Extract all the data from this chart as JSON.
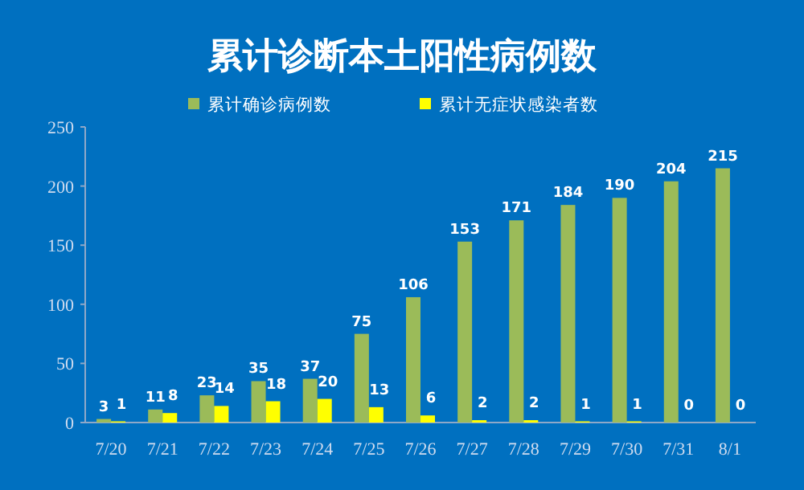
{
  "chart_data": {
    "type": "bar",
    "title": "累计诊断本土阳性病例数",
    "categories": [
      "7/20",
      "7/21",
      "7/22",
      "7/23",
      "7/24",
      "7/25",
      "7/26",
      "7/27",
      "7/28",
      "7/29",
      "7/30",
      "7/31",
      "8/1"
    ],
    "series": [
      {
        "name": "累计确诊病例数",
        "color": "#9bbb59",
        "values": [
          3,
          11,
          23,
          35,
          37,
          75,
          106,
          153,
          171,
          184,
          190,
          204,
          215
        ]
      },
      {
        "name": "累计无症状感染者数",
        "color": "#ffff00",
        "values": [
          1,
          8,
          14,
          18,
          20,
          13,
          6,
          2,
          2,
          1,
          1,
          0,
          0
        ]
      }
    ],
    "ylim": [
      0,
      250
    ],
    "yticks": [
      0,
      50,
      100,
      150,
      200,
      250
    ],
    "data_labels": true,
    "legend": "top",
    "grid": false
  }
}
